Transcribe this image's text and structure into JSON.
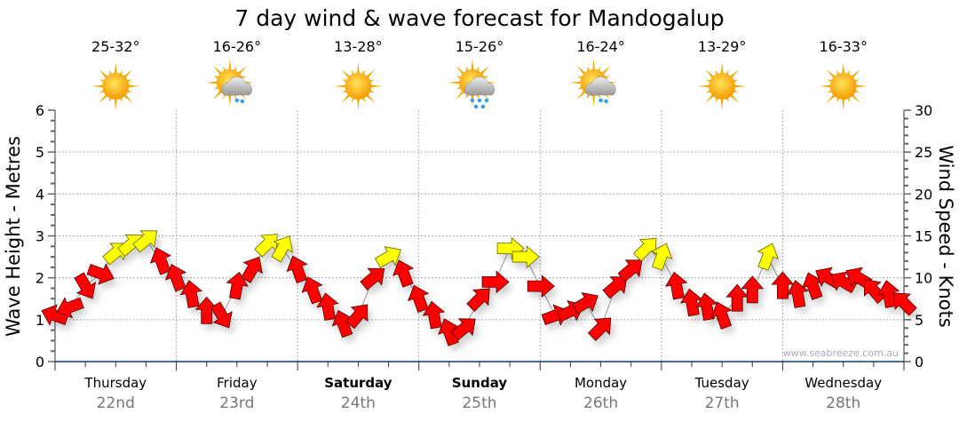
{
  "chart_data": {
    "type": "scatter",
    "title": "7 day wind & wave forecast for Mandogalup",
    "ylabel_left": "Wave Height - Metres",
    "ylabel_right": "Wind Speed - Knots",
    "ylim_left": [
      0,
      6
    ],
    "ylim_right": [
      0,
      30
    ],
    "yticks_left": [
      "0",
      "1",
      "2",
      "3",
      "4",
      "5",
      "6"
    ],
    "yticks_right": [
      "0",
      "5",
      "10",
      "15",
      "20",
      "25",
      "30"
    ],
    "grid": true,
    "watermark": "www.seabreeze.com.au",
    "days": [
      {
        "name": "Thursday",
        "date": "22nd",
        "temp": "25-32°",
        "icon": "sunny-icon",
        "bold": false
      },
      {
        "name": "Friday",
        "date": "23rd",
        "temp": "16-26°",
        "icon": "partly-cloudy-icon",
        "bold": false
      },
      {
        "name": "Saturday",
        "date": "24th",
        "temp": "13-28°",
        "icon": "sunny-icon",
        "bold": true
      },
      {
        "name": "Sunday",
        "date": "25th",
        "temp": "15-26°",
        "icon": "showers-icon",
        "bold": true
      },
      {
        "name": "Monday",
        "date": "26th",
        "temp": "16-24°",
        "icon": "light-showers-icon",
        "bold": false
      },
      {
        "name": "Tuesday",
        "date": "27th",
        "temp": "13-29°",
        "icon": "sunny-icon",
        "bold": false
      },
      {
        "name": "Wednesday",
        "date": "28th",
        "temp": "16-33°",
        "icon": "sunny-icon",
        "bold": false
      }
    ],
    "wind_series_fields": [
      "hour",
      "knots",
      "arrow_angle_deg",
      "color"
    ],
    "wind": [
      [
        0,
        5.5,
        200,
        "red"
      ],
      [
        3,
        6.5,
        160,
        "red"
      ],
      [
        6,
        9,
        60,
        "red"
      ],
      [
        9,
        10.5,
        20,
        "red"
      ],
      [
        12,
        13,
        -40,
        "yellow"
      ],
      [
        15,
        14,
        -40,
        "yellow"
      ],
      [
        18,
        14.5,
        -40,
        "yellow"
      ],
      [
        21,
        12,
        -110,
        "red"
      ],
      [
        24,
        10,
        -110,
        "red"
      ],
      [
        27,
        8,
        -100,
        "red"
      ],
      [
        30,
        6,
        -90,
        "red"
      ],
      [
        33,
        5.5,
        60,
        "red"
      ],
      [
        36,
        9,
        -80,
        "red"
      ],
      [
        39,
        11,
        -60,
        "red"
      ],
      [
        42,
        14,
        -45,
        "yellow"
      ],
      [
        45,
        13.5,
        -60,
        "yellow"
      ],
      [
        48,
        11,
        -110,
        "red"
      ],
      [
        51,
        8.5,
        -110,
        "red"
      ],
      [
        54,
        6.5,
        -100,
        "red"
      ],
      [
        57,
        4.5,
        -110,
        "red"
      ],
      [
        60,
        5.5,
        -50,
        "red"
      ],
      [
        63,
        10,
        -40,
        "red"
      ],
      [
        66,
        12.5,
        -30,
        "yellow"
      ],
      [
        69,
        10.5,
        -110,
        "red"
      ],
      [
        72,
        7.5,
        -110,
        "red"
      ],
      [
        75,
        5.5,
        -100,
        "red"
      ],
      [
        78,
        3.5,
        -110,
        "red"
      ],
      [
        81,
        4,
        -40,
        "red"
      ],
      [
        84,
        7.5,
        -45,
        "red"
      ],
      [
        87,
        9.5,
        0,
        "red"
      ],
      [
        90,
        13.5,
        0,
        "yellow"
      ],
      [
        93,
        12.5,
        0,
        "yellow"
      ],
      [
        96,
        9,
        0,
        "red"
      ],
      [
        99,
        5.5,
        -20,
        "red"
      ],
      [
        102,
        6,
        -25,
        "red"
      ],
      [
        105,
        7,
        -30,
        "red"
      ],
      [
        108,
        4,
        -45,
        "red"
      ],
      [
        111,
        9,
        -40,
        "red"
      ],
      [
        114,
        11,
        -40,
        "red"
      ],
      [
        117,
        13.5,
        -45,
        "yellow"
      ],
      [
        120,
        12.5,
        -70,
        "yellow"
      ],
      [
        123,
        9,
        -100,
        "red"
      ],
      [
        126,
        7,
        -100,
        "red"
      ],
      [
        129,
        6.5,
        -100,
        "red"
      ],
      [
        132,
        5.5,
        -110,
        "red"
      ],
      [
        135,
        7.5,
        -90,
        "red"
      ],
      [
        138,
        8.5,
        -90,
        "red"
      ],
      [
        141,
        12.5,
        -70,
        "yellow"
      ],
      [
        144,
        9,
        -90,
        "red"
      ],
      [
        147,
        8,
        -100,
        "red"
      ],
      [
        150,
        9,
        -110,
        "red"
      ],
      [
        153,
        10,
        -150,
        "red"
      ],
      [
        156,
        9.5,
        -150,
        "red"
      ],
      [
        159,
        10,
        -150,
        "red"
      ],
      [
        162,
        8.5,
        -130,
        "red"
      ],
      [
        165,
        8,
        -100,
        "red"
      ],
      [
        168,
        7,
        -135,
        "red"
      ]
    ],
    "colors": {
      "red": "#ff0000",
      "yellow": "#ffff00",
      "axis": "#0b3d6b",
      "date": "#777777"
    }
  }
}
